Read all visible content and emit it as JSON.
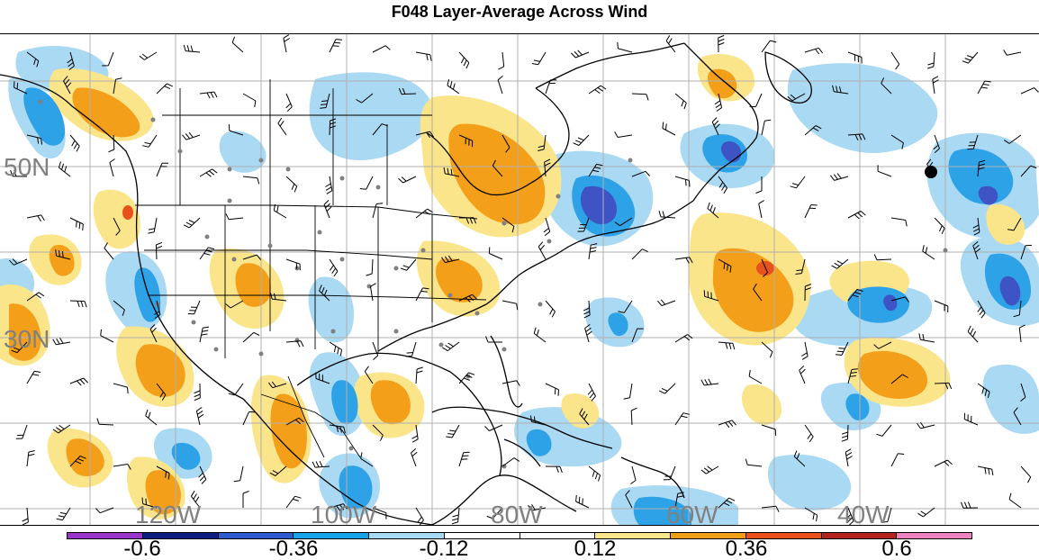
{
  "title": "F048 Layer-Average Across Wind",
  "map": {
    "lat_labels": [
      "50N",
      "30N"
    ],
    "lon_labels": [
      "120W",
      "100W",
      "80W",
      "60W",
      "40W"
    ],
    "colors": {
      "positive_light": "#fbe58a",
      "positive_mid": "#f49f1a",
      "positive_strong": "#e8501c",
      "negative_light": "#a9d9f3",
      "negative_mid": "#2ea2e6",
      "negative_strong": "#3f54c4",
      "coast": "#000000",
      "grid": "#b0b0b0",
      "station": "#808080"
    }
  },
  "colorbar": {
    "colors": [
      "#9936c9",
      "#0e1e82",
      "#2f5bd1",
      "#17a4e8",
      "#a6dbf6",
      "#ffffff",
      "#ffffff",
      "#fbe58a",
      "#f0a018",
      "#e8501c",
      "#b3241f",
      "#ef83bd"
    ],
    "labels": [
      "-0.6",
      "-0.36",
      "-0.12",
      "0.12",
      "0.36",
      "0.6"
    ]
  }
}
